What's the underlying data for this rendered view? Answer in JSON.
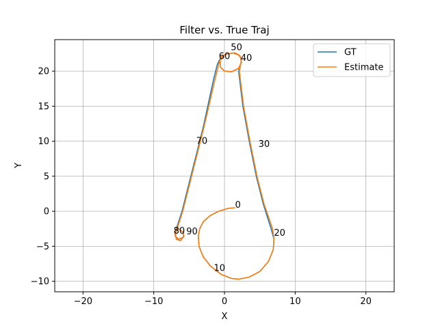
{
  "chart_data": {
    "type": "line",
    "title": "Filter vs. True Traj",
    "xlabel": "X",
    "ylabel": "Y",
    "xlim": [
      -24,
      24
    ],
    "ylim": [
      -11.5,
      24.5
    ],
    "xticks": [
      -20,
      -10,
      0,
      10,
      20
    ],
    "yticks": [
      -10,
      -5,
      0,
      5,
      10,
      15,
      20
    ],
    "xtick_labels": [
      "−20",
      "−10",
      "0",
      "10",
      "20"
    ],
    "ytick_labels": [
      "−10",
      "−5",
      "0",
      "5",
      "10",
      "15",
      "20"
    ],
    "grid": true,
    "legend_position": "top-right",
    "series": [
      {
        "name": "GT",
        "color": "#1f77b4",
        "points": [
          [
            1.5,
            0.5
          ],
          [
            0.5,
            0.4
          ],
          [
            -0.8,
            0.0
          ],
          [
            -2.0,
            -0.6
          ],
          [
            -3.0,
            -1.5
          ],
          [
            -3.5,
            -2.5
          ],
          [
            -3.7,
            -3.5
          ],
          [
            -3.6,
            -5.0
          ],
          [
            -3.0,
            -6.5
          ],
          [
            -2.0,
            -7.8
          ],
          [
            -0.5,
            -9.0
          ],
          [
            1.0,
            -9.6
          ],
          [
            2.0,
            -9.7
          ],
          [
            3.5,
            -9.4
          ],
          [
            5.0,
            -8.6
          ],
          [
            6.2,
            -7.2
          ],
          [
            6.9,
            -5.5
          ],
          [
            7.0,
            -4.0
          ],
          [
            6.6,
            -2.5
          ],
          [
            5.5,
            1.0
          ],
          [
            4.5,
            5.0
          ],
          [
            3.5,
            10.0
          ],
          [
            2.6,
            15.0
          ],
          [
            2.0,
            20.0
          ],
          [
            2.3,
            21.0
          ],
          [
            2.4,
            21.8
          ],
          [
            2.0,
            22.3
          ],
          [
            1.2,
            22.6
          ],
          [
            0.2,
            22.4
          ],
          [
            -0.6,
            21.6
          ],
          [
            -0.6,
            20.6
          ],
          [
            0.0,
            20.0
          ],
          [
            1.0,
            19.9
          ],
          [
            2.0,
            20.4
          ],
          [
            2.4,
            21.3
          ],
          [
            2.2,
            22.2
          ],
          [
            1.5,
            22.6
          ],
          [
            0.3,
            22.5
          ],
          [
            -0.5,
            22.0
          ],
          [
            -1.0,
            21.0
          ],
          [
            -1.5,
            19.0
          ],
          [
            -3.0,
            12.0
          ],
          [
            -4.0,
            8.0
          ],
          [
            -5.0,
            4.0
          ],
          [
            -6.0,
            0.0
          ],
          [
            -6.8,
            -2.5
          ],
          [
            -7.0,
            -3.5
          ],
          [
            -6.5,
            -4.0
          ],
          [
            -5.8,
            -3.7
          ],
          [
            -5.8,
            -3.0
          ],
          [
            -6.5,
            -2.5
          ],
          [
            -7.0,
            -3.0
          ],
          [
            -6.8,
            -4.0
          ],
          [
            -6.2,
            -4.2
          ],
          [
            -5.7,
            -3.5
          ]
        ]
      },
      {
        "name": "Estimate",
        "color": "#ff7f0e",
        "points": [
          [
            1.5,
            0.5
          ],
          [
            0.5,
            0.4
          ],
          [
            -0.8,
            0.0
          ],
          [
            -2.0,
            -0.6
          ],
          [
            -3.0,
            -1.5
          ],
          [
            -3.5,
            -2.5
          ],
          [
            -3.7,
            -3.5
          ],
          [
            -3.6,
            -5.0
          ],
          [
            -3.0,
            -6.5
          ],
          [
            -2.0,
            -7.8
          ],
          [
            -0.5,
            -9.0
          ],
          [
            1.0,
            -9.6
          ],
          [
            2.0,
            -9.7
          ],
          [
            3.5,
            -9.4
          ],
          [
            5.0,
            -8.6
          ],
          [
            6.2,
            -7.2
          ],
          [
            6.9,
            -5.5
          ],
          [
            7.0,
            -4.0
          ],
          [
            6.8,
            -2.5
          ],
          [
            5.6,
            1.0
          ],
          [
            4.6,
            5.0
          ],
          [
            3.6,
            10.0
          ],
          [
            2.7,
            15.0
          ],
          [
            2.1,
            20.0
          ],
          [
            2.3,
            21.0
          ],
          [
            2.4,
            21.8
          ],
          [
            2.0,
            22.3
          ],
          [
            1.2,
            22.6
          ],
          [
            0.2,
            22.4
          ],
          [
            -0.6,
            21.6
          ],
          [
            -0.6,
            20.6
          ],
          [
            0.0,
            20.0
          ],
          [
            1.0,
            19.9
          ],
          [
            2.0,
            20.4
          ],
          [
            2.4,
            21.3
          ],
          [
            2.2,
            22.2
          ],
          [
            1.5,
            22.6
          ],
          [
            0.3,
            22.5
          ],
          [
            -0.5,
            22.0
          ],
          [
            -0.8,
            21.0
          ],
          [
            -1.3,
            19.0
          ],
          [
            -2.9,
            12.0
          ],
          [
            -3.9,
            8.0
          ],
          [
            -4.9,
            4.0
          ],
          [
            -5.9,
            0.0
          ],
          [
            -6.7,
            -2.5
          ],
          [
            -7.0,
            -3.5
          ],
          [
            -6.5,
            -4.0
          ],
          [
            -5.8,
            -3.7
          ],
          [
            -5.8,
            -3.0
          ],
          [
            -6.5,
            -2.5
          ],
          [
            -7.0,
            -3.0
          ],
          [
            -6.8,
            -4.0
          ],
          [
            -6.2,
            -4.2
          ],
          [
            -5.7,
            -3.5
          ]
        ]
      }
    ],
    "annotations": [
      {
        "text": "0",
        "x": 1.5,
        "y": 0.5
      },
      {
        "text": "10",
        "x": -1.5,
        "y": -8.5
      },
      {
        "text": "20",
        "x": 7.0,
        "y": -3.5
      },
      {
        "text": "30",
        "x": 4.8,
        "y": 9.2
      },
      {
        "text": "40",
        "x": 2.3,
        "y": 21.5
      },
      {
        "text": "50",
        "x": 0.9,
        "y": 23.0
      },
      {
        "text": "60",
        "x": -0.8,
        "y": 21.7
      },
      {
        "text": "70",
        "x": -4.0,
        "y": 9.6
      },
      {
        "text": "80",
        "x": -7.2,
        "y": -3.2
      },
      {
        "text": "90",
        "x": -5.4,
        "y": -3.3
      }
    ]
  }
}
